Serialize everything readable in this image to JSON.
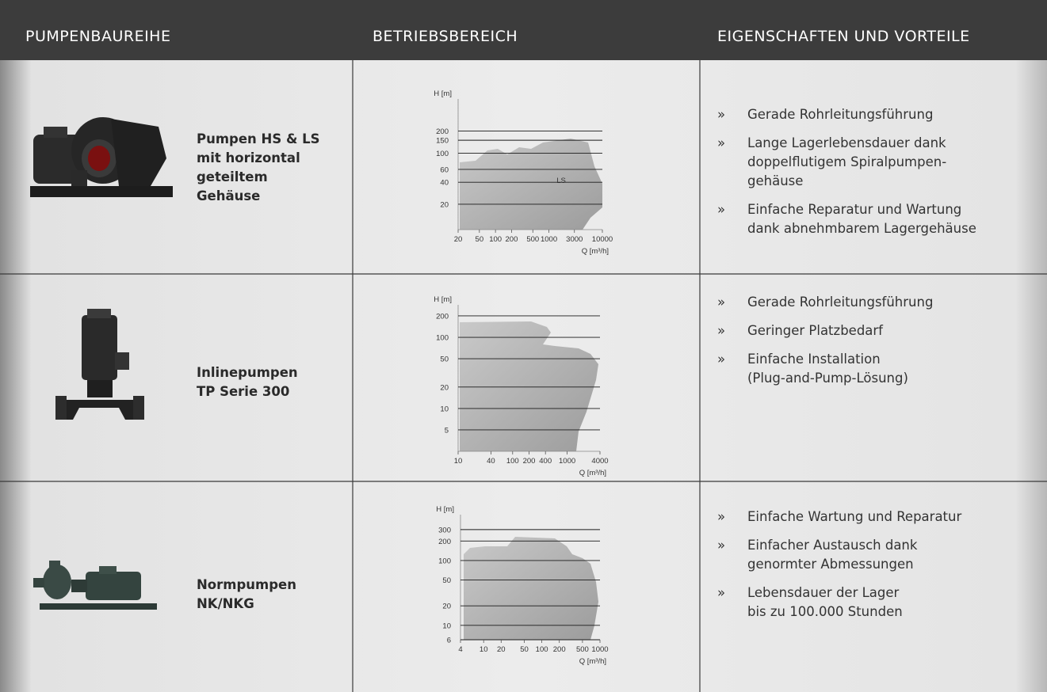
{
  "header": {
    "columns": [
      "PUMPENBAUREIHE",
      "BETRIEBSBEREICH",
      "EIGENSCHAFTEN UND VORTEILE"
    ]
  },
  "bullet": "»",
  "rows": [
    {
      "name": [
        "Pumpen HS & LS",
        "mit horizontal",
        "geteiltem",
        "Gehäuse"
      ],
      "chart": {
        "type": "area",
        "y_label": "H [m]",
        "x_label": "Q [m³/h]",
        "log_scale": true,
        "xlim": [
          20,
          10000
        ],
        "xticks": [
          20,
          50,
          100,
          200,
          500,
          1000,
          3000,
          10000
        ],
        "ylim": [
          9,
          550
        ],
        "yticks": [
          20,
          40,
          60,
          100,
          150,
          200
        ],
        "area_label": "LS"
      },
      "features": [
        [
          "Gerade Rohrleitungsführung"
        ],
        [
          "Lange Lagerlebensdauer dank",
          "doppelflutigem Spiralpumpen-",
          "gehäuse"
        ],
        [
          "Einfache Reparatur und Wartung",
          "dank abnehmbarem Lagergehäuse"
        ]
      ]
    },
    {
      "name": [
        "Inlinepumpen",
        "TP Serie 300"
      ],
      "chart": {
        "type": "area",
        "y_label": "H [m]",
        "x_label": "Q [m³/h]",
        "log_scale": true,
        "xlim": [
          10,
          4000
        ],
        "xticks": [
          10,
          40,
          100,
          200,
          400,
          1000,
          4000
        ],
        "ylim": [
          2.5,
          286
        ],
        "yticks": [
          5,
          10,
          20,
          50,
          100,
          200
        ]
      },
      "features": [
        [
          "Gerade Rohrleitungsführung"
        ],
        [
          "Geringer Platzbedarf"
        ],
        [
          "Einfache Installation",
          "(Plug-and-Pump-Lösung)"
        ]
      ]
    },
    {
      "name": [
        "Normpumpen",
        "NK/NKG"
      ],
      "chart": {
        "type": "area",
        "y_label": "H [m]",
        "x_label": "Q [m³/h]",
        "log_scale": true,
        "xlim": [
          4,
          1000
        ],
        "xticks": [
          4,
          10,
          20,
          50,
          100,
          200,
          500,
          1000
        ],
        "ylim": [
          6,
          510
        ],
        "yticks": [
          6,
          10,
          20,
          50,
          100,
          200,
          300
        ]
      },
      "features": [
        [
          "Einfache Wartung und Reparatur"
        ],
        [
          "Einfacher Austausch dank",
          "genormter Abmessungen"
        ],
        [
          "Lebensdauer der Lager",
          "bis zu 100.000 Stunden"
        ]
      ]
    }
  ]
}
